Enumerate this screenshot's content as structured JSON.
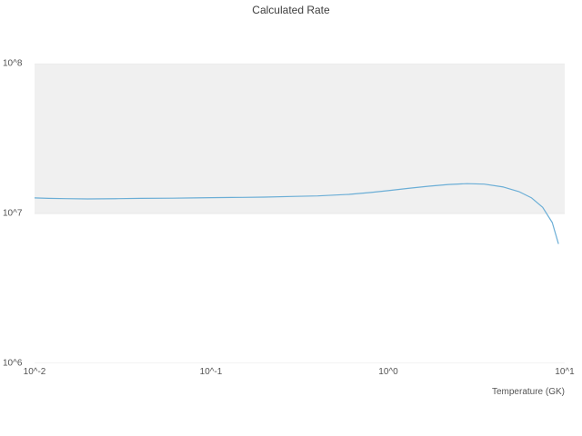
{
  "chart_data": {
    "type": "line",
    "title": "Calculated Rate",
    "xlabel": "Temperature (GK)",
    "ylabel": "",
    "x_scale": "log",
    "y_scale": "log",
    "xlim": [
      0.01,
      10
    ],
    "ylim": [
      1000000,
      100000000
    ],
    "x_ticks": [
      "10^-2",
      "10^-1",
      "10^0",
      "10^1"
    ],
    "x_tick_values": [
      0.01,
      0.1,
      1,
      10
    ],
    "y_ticks": [
      "10^6",
      "10^7",
      "10^8"
    ],
    "y_tick_values": [
      1000000,
      10000000,
      100000000
    ],
    "grid": "horizontal-faint",
    "legend": "none",
    "line_color": "#6baed6",
    "band_color": "#f0f0f0",
    "bands": [
      {
        "from": 10000000,
        "to": 100000000
      }
    ],
    "series": [
      {
        "name": "Calculated Rate",
        "x": [
          0.01,
          0.012,
          0.015,
          0.02,
          0.03,
          0.04,
          0.06,
          0.08,
          0.1,
          0.15,
          0.2,
          0.3,
          0.4,
          0.6,
          0.8,
          1.0,
          1.3,
          1.7,
          2.2,
          2.8,
          3.5,
          4.5,
          5.5,
          6.5,
          7.5,
          8.5,
          9.2
        ],
        "y": [
          12700000,
          12600000,
          12550000,
          12500000,
          12550000,
          12600000,
          12650000,
          12700000,
          12750000,
          12800000,
          12850000,
          13000000,
          13100000,
          13400000,
          13800000,
          14200000,
          14700000,
          15200000,
          15600000,
          15800000,
          15700000,
          15000000,
          14000000,
          12700000,
          11000000,
          8700000,
          6300000
        ]
      }
    ]
  }
}
